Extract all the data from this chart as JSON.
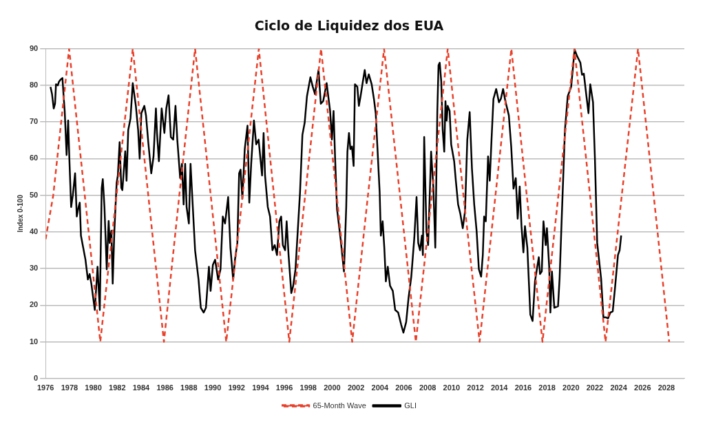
{
  "chart_data": {
    "type": "line",
    "title": "Ciclo de Liquidez dos EUA",
    "ylabel": "Index 0-100",
    "xlim": [
      1976,
      2029.5
    ],
    "xticks": [
      1976,
      1978,
      1980,
      1982,
      1984,
      1986,
      1988,
      1990,
      1992,
      1994,
      1996,
      1998,
      2000,
      2002,
      2004,
      2006,
      2008,
      2010,
      2012,
      2014,
      2016,
      2018,
      2020,
      2022,
      2024,
      2026,
      2028
    ],
    "ylim": [
      0,
      90
    ],
    "yticks": [
      0,
      10,
      20,
      30,
      40,
      50,
      60,
      70,
      80,
      90
    ],
    "grid": "y",
    "legend": "bottom",
    "marker": "none",
    "series": [
      {
        "name": "65-Month Wave",
        "color": "#e8402a",
        "line_style": "dashed",
        "x": [
          1976.0,
          1976.64,
          1977.97,
          1979.28,
          1980.58,
          1981.94,
          1983.3,
          1984.6,
          1985.91,
          1987.2,
          1988.52,
          1989.83,
          1991.13,
          1992.5,
          1993.86,
          1995.13,
          1996.41,
          1997.74,
          1999.07,
          2000.38,
          2001.68,
          2003.0,
          2004.35,
          2005.68,
          2007.01,
          2008.35,
          2009.68,
          2011.0,
          2012.35,
          2013.68,
          2015.01,
          2016.3,
          2017.62,
          2018.95,
          2020.29,
          2021.6,
          2022.9,
          2024.26,
          2025.62,
          2026.93,
          2028.23
        ],
        "values": [
          38,
          50,
          90,
          50,
          10,
          50,
          90,
          50,
          10,
          50,
          90,
          50,
          10,
          50,
          90,
          50,
          10,
          50,
          90,
          50,
          10,
          50,
          90,
          50,
          10,
          50,
          90,
          50,
          10,
          50,
          90,
          50,
          10,
          50,
          90,
          50,
          10,
          50,
          90,
          50,
          10
        ]
      },
      {
        "name": "GLI",
        "color": "#000000",
        "line_style": "solid",
        "x": [
          1976.41,
          1976.54,
          1976.68,
          1976.79,
          1976.87,
          1977.02,
          1977.12,
          1977.26,
          1977.41,
          1977.51,
          1977.6,
          1977.76,
          1977.89,
          1977.99,
          1978.14,
          1978.28,
          1978.47,
          1978.61,
          1978.76,
          1978.86,
          1978.96,
          1979.15,
          1979.34,
          1979.54,
          1979.69,
          1979.83,
          1980.12,
          1980.35,
          1980.54,
          1980.7,
          1980.79,
          1980.93,
          1981.12,
          1981.28,
          1981.37,
          1981.51,
          1981.62,
          1981.76,
          1981.95,
          1982.05,
          1982.2,
          1982.34,
          1982.43,
          1982.67,
          1982.78,
          1982.92,
          1983.11,
          1983.3,
          1983.56,
          1983.75,
          1983.88,
          1984.02,
          1984.27,
          1984.41,
          1984.6,
          1984.85,
          1985.04,
          1985.24,
          1985.33,
          1985.49,
          1985.72,
          1985.95,
          1986.11,
          1986.3,
          1986.49,
          1986.69,
          1986.88,
          1987.03,
          1987.27,
          1987.42,
          1987.56,
          1987.69,
          1987.81,
          1988.0,
          1988.14,
          1988.33,
          1988.52,
          1988.81,
          1989.0,
          1989.24,
          1989.43,
          1989.68,
          1989.82,
          1990.01,
          1990.2,
          1990.45,
          1990.65,
          1990.84,
          1991.03,
          1991.29,
          1991.48,
          1991.71,
          1991.86,
          1992.06,
          1992.21,
          1992.33,
          1992.48,
          1992.68,
          1992.91,
          1993.06,
          1993.22,
          1993.45,
          1993.64,
          1993.84,
          1994.13,
          1994.26,
          1994.38,
          1994.61,
          1994.8,
          1995.0,
          1995.19,
          1995.38,
          1995.58,
          1995.73,
          1995.87,
          1996.06,
          1996.19,
          1996.35,
          1996.58,
          1996.74,
          1996.93,
          1997.12,
          1997.31,
          1997.51,
          1997.7,
          1997.89,
          1998.18,
          1998.38,
          1998.57,
          1998.71,
          1998.86,
          1999.05,
          1999.25,
          1999.54,
          1999.83,
          1999.98,
          2000.12,
          2000.25,
          2000.41,
          2000.7,
          2000.99,
          2001.18,
          2001.28,
          2001.41,
          2001.53,
          2001.66,
          2001.8,
          2001.91,
          2002.11,
          2002.24,
          2002.38,
          2002.57,
          2002.73,
          2002.88,
          2003.07,
          2003.31,
          2003.5,
          2003.65,
          2003.79,
          2003.98,
          2004.08,
          2004.23,
          2004.37,
          2004.5,
          2004.66,
          2004.85,
          2005.08,
          2005.28,
          2005.53,
          2005.78,
          2005.97,
          2006.2,
          2006.4,
          2006.63,
          2006.88,
          2007.07,
          2007.21,
          2007.36,
          2007.52,
          2007.6,
          2007.71,
          2007.9,
          2008.04,
          2008.29,
          2008.48,
          2008.64,
          2008.81,
          2008.91,
          2009.01,
          2009.14,
          2009.26,
          2009.39,
          2009.49,
          2009.59,
          2009.68,
          2009.84,
          2009.97,
          2010.22,
          2010.36,
          2010.55,
          2010.74,
          2010.94,
          2011.13,
          2011.32,
          2011.52,
          2011.71,
          2011.9,
          2012.1,
          2012.29,
          2012.48,
          2012.62,
          2012.73,
          2012.87,
          2013.06,
          2013.2,
          2013.35,
          2013.51,
          2013.74,
          2013.97,
          2014.13,
          2014.32,
          2014.51,
          2014.8,
          2015.0,
          2015.19,
          2015.38,
          2015.54,
          2015.71,
          2015.86,
          2016.02,
          2016.15,
          2016.35,
          2016.6,
          2016.79,
          2016.99,
          2017.18,
          2017.31,
          2017.41,
          2017.56,
          2017.7,
          2017.89,
          2017.99,
          2018.18,
          2018.28,
          2018.41,
          2018.61,
          2018.92,
          2019.05,
          2019.25,
          2019.5,
          2019.73,
          2020.02,
          2020.31,
          2020.5,
          2020.79,
          2020.93,
          2021.08,
          2021.28,
          2021.47,
          2021.62,
          2021.85,
          2022.01,
          2022.2,
          2022.53,
          2022.72,
          2022.92,
          2023.11,
          2023.3,
          2023.5,
          2023.69,
          2023.94,
          2024.08,
          2024.21
        ],
        "values": [
          79.6,
          77.6,
          73.7,
          75,
          80.3,
          80,
          81,
          81.6,
          82,
          77,
          73,
          61,
          70.4,
          60,
          46.8,
          50,
          56,
          44.2,
          46.8,
          48,
          39,
          35.7,
          32.4,
          27,
          28.5,
          25.9,
          18.7,
          30.5,
          18.7,
          52,
          54.4,
          46.8,
          29.8,
          43,
          37,
          40.3,
          25.9,
          40.3,
          53.4,
          55.4,
          64.5,
          52,
          51.4,
          62,
          54,
          67.8,
          71,
          80.6,
          74.4,
          67.8,
          60,
          72.4,
          74.4,
          71.8,
          64.5,
          56,
          60.6,
          73.7,
          67,
          59.3,
          73.7,
          67,
          73.7,
          77.3,
          65.9,
          65.2,
          74.4,
          65.2,
          54.7,
          58.6,
          47.5,
          58.6,
          46.8,
          42.3,
          58.6,
          46.8,
          35,
          27,
          19.3,
          18,
          19.3,
          30.5,
          23.9,
          31,
          32.4,
          27,
          29.8,
          44.2,
          42.3,
          49.5,
          35.7,
          27,
          32.4,
          37,
          56,
          57,
          49,
          62.6,
          69,
          48,
          58.6,
          70.4,
          63.9,
          65.2,
          55.4,
          67,
          55.4,
          46.8,
          44.2,
          35,
          36.4,
          33.7,
          42.9,
          44.2,
          36.4,
          35,
          42.9,
          33.7,
          23.3,
          25.3,
          29.8,
          40.3,
          50.8,
          66.5,
          69.8,
          77,
          82.2,
          79.6,
          77.6,
          81,
          84.2,
          75,
          75.7,
          80.6,
          73,
          65.2,
          73,
          60,
          46.2,
          38.3,
          29.2,
          46.8,
          61.9,
          67,
          62.6,
          63.3,
          58,
          80.3,
          79.6,
          74.4,
          77,
          81,
          84.2,
          80.6,
          83,
          80.3,
          76.3,
          72.4,
          63.2,
          50.8,
          39,
          42.9,
          35.7,
          26.5,
          30.5,
          25.3,
          23.9,
          18.7,
          18,
          14.7,
          12.5,
          15.4,
          22,
          27.8,
          38.3,
          49.5,
          37,
          35,
          39,
          33.7,
          65.9,
          40.3,
          36.4,
          61.9,
          52,
          35.7,
          73,
          85.5,
          86.2,
          81,
          67.8,
          61.9,
          75.7,
          70.4,
          74.4,
          73,
          63.9,
          59.3,
          54,
          47.5,
          44.9,
          41,
          45.6,
          65.2,
          72.7,
          57.3,
          47.5,
          40.3,
          29.8,
          27.8,
          33.7,
          44.2,
          42.9,
          60.6,
          54,
          65.2,
          76.3,
          79,
          75.4,
          76.3,
          79,
          75.7,
          71.8,
          63.2,
          51.8,
          54.7,
          43.6,
          52.4,
          41.6,
          34.4,
          41.6,
          35.7,
          17.4,
          15.7,
          26.5,
          30.5,
          33.1,
          28.5,
          29.2,
          42.9,
          36.4,
          41,
          30.5,
          18,
          29.2,
          19.3,
          19.7,
          27.2,
          45.6,
          67.8,
          77,
          79.6,
          89.8,
          88.1,
          86.2,
          82.9,
          83.2,
          77.6,
          72.4,
          80.3,
          75.4,
          60,
          37,
          27.2,
          16.7,
          16.7,
          16.4,
          18,
          18.3,
          24.6,
          33.7,
          35,
          39
        ]
      }
    ]
  }
}
